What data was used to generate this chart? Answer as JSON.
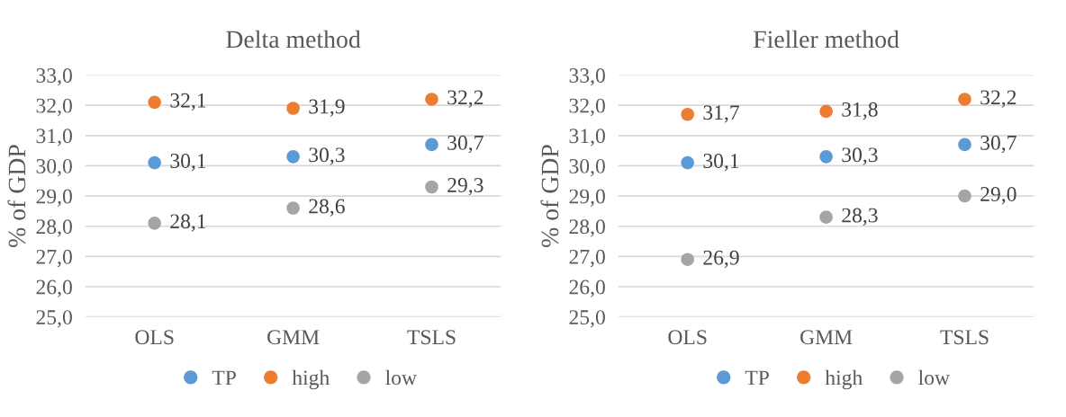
{
  "chart_data": [
    {
      "type": "scatter",
      "title": "Delta method",
      "ylabel": "% of GDP",
      "categories": [
        "OLS",
        "GMM",
        "TSLS"
      ],
      "ylim": [
        25,
        33
      ],
      "yticks": [
        {
          "value": 25,
          "label": "25,0"
        },
        {
          "value": 26,
          "label": "26,0"
        },
        {
          "value": 27,
          "label": "27,0"
        },
        {
          "value": 28,
          "label": "28,0"
        },
        {
          "value": 29,
          "label": "29,0"
        },
        {
          "value": 30,
          "label": "30,0"
        },
        {
          "value": 31,
          "label": "31,0"
        },
        {
          "value": 32,
          "label": "32,0"
        },
        {
          "value": 33,
          "label": "33,0"
        }
      ],
      "grid": "y",
      "legend": "bottom",
      "marker": "circle",
      "series": [
        {
          "name": "TP",
          "color": "#5b9bd5",
          "values": [
            30.1,
            30.3,
            30.7
          ],
          "value_labels": [
            "30,1",
            "30,3",
            "30,7"
          ]
        },
        {
          "name": "high",
          "color": "#ed7d31",
          "values": [
            32.1,
            31.9,
            32.2
          ],
          "value_labels": [
            "32,1",
            "31,9",
            "32,2"
          ]
        },
        {
          "name": "low",
          "color": "#a5a5a5",
          "values": [
            28.1,
            28.6,
            29.3
          ],
          "value_labels": [
            "28,1",
            "28,6",
            "29,3"
          ]
        }
      ]
    },
    {
      "type": "scatter",
      "title": "Fieller method",
      "ylabel": "% of GDP",
      "categories": [
        "OLS",
        "GMM",
        "TSLS"
      ],
      "ylim": [
        25,
        33
      ],
      "yticks": [
        {
          "value": 25,
          "label": "25,0"
        },
        {
          "value": 26,
          "label": "26,0"
        },
        {
          "value": 27,
          "label": "27,0"
        },
        {
          "value": 28,
          "label": "28,0"
        },
        {
          "value": 29,
          "label": "29,0"
        },
        {
          "value": 30,
          "label": "30,0"
        },
        {
          "value": 31,
          "label": "31,0"
        },
        {
          "value": 32,
          "label": "32,0"
        },
        {
          "value": 33,
          "label": "33,0"
        }
      ],
      "grid": "y",
      "legend": "bottom",
      "marker": "circle",
      "series": [
        {
          "name": "TP",
          "color": "#5b9bd5",
          "values": [
            30.1,
            30.3,
            30.7
          ],
          "value_labels": [
            "30,1",
            "30,3",
            "30,7"
          ]
        },
        {
          "name": "high",
          "color": "#ed7d31",
          "values": [
            31.7,
            31.8,
            32.2
          ],
          "value_labels": [
            "31,7",
            "31,8",
            "32,2"
          ]
        },
        {
          "name": "low",
          "color": "#a5a5a5",
          "values": [
            26.9,
            28.3,
            29.0
          ],
          "value_labels": [
            "26,9",
            "28,3",
            "29,0"
          ]
        }
      ]
    }
  ]
}
